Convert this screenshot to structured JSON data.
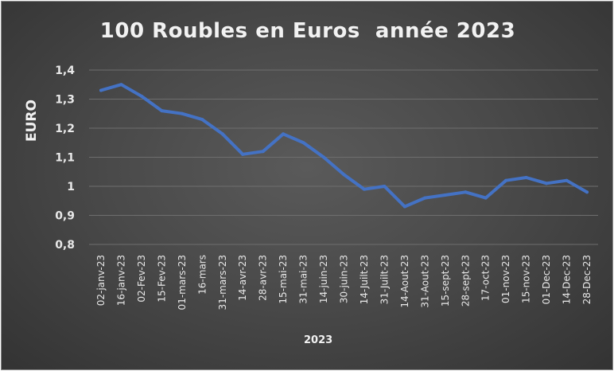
{
  "chart_data": {
    "type": "line",
    "title": "100 Roubles en Euros  année 2023",
    "xlabel": "2023",
    "ylabel": "EURO",
    "ylim": [
      0.8,
      1.4
    ],
    "yticks": [
      "1,4",
      "1,3",
      "1,2",
      "1,1",
      "1",
      "0,9",
      "0,8"
    ],
    "ytick_values": [
      1.4,
      1.3,
      1.2,
      1.1,
      1.0,
      0.9,
      0.8
    ],
    "grid": true,
    "line_color": "#4472c4",
    "categories": [
      "02-janv-23",
      "16-janv-23",
      "02-Fev-23",
      "15-Fev-23",
      "01-mars-23",
      "16-mars",
      "31-mars-23",
      "14-avr-23",
      "28-avr-23",
      "15-mai-23",
      "31-mai-23",
      "14-juin-23",
      "30-juin-23",
      "14-Juilt-23",
      "31-Juilt-23",
      "14-Aout-23",
      "31-Aout-23",
      "15-sept-23",
      "28-sept-23",
      "17-oct-23",
      "01-nov-23",
      "15-nov-23",
      "01-Dec-23",
      "14-Dec-23",
      "28-Dec-23"
    ],
    "values": [
      1.33,
      1.35,
      1.31,
      1.26,
      1.25,
      1.23,
      1.18,
      1.11,
      1.12,
      1.18,
      1.15,
      1.1,
      1.04,
      0.99,
      1.0,
      0.93,
      0.96,
      0.97,
      0.98,
      0.96,
      1.02,
      1.03,
      1.01,
      1.02,
      0.98
    ]
  }
}
